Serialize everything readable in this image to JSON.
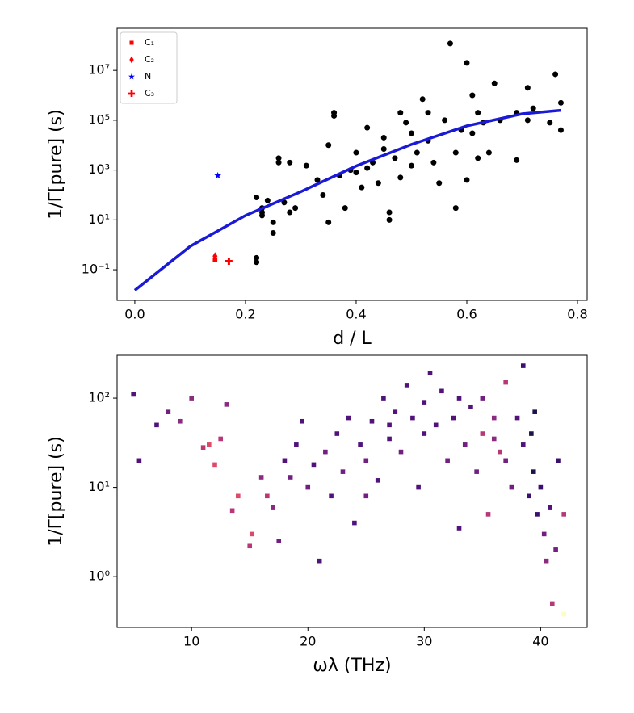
{
  "chart_data": [
    {
      "type": "scatter",
      "xlabel": "d / L",
      "ylabel": "1/Γ[pure] (s)",
      "log_y": true,
      "legend": "upper left",
      "xlim": [
        -0.032,
        0.8175
      ],
      "ylim": [
        0.0059,
        490000000
      ],
      "xticks": [
        {
          "value": 0,
          "label": "0.0"
        },
        {
          "value": 0.2,
          "label": "0.2"
        },
        {
          "value": 0.4,
          "label": "0.4"
        },
        {
          "value": 0.6,
          "label": "0.6"
        },
        {
          "value": 0.8,
          "label": "0.8"
        }
      ],
      "yticks": [
        {
          "value": 0.1,
          "label": "10⁻¹"
        },
        {
          "value": 10,
          "label": "10¹"
        },
        {
          "value": 1000,
          "label": "10³"
        },
        {
          "value": 100000,
          "label": "10⁵"
        },
        {
          "value": 10000000,
          "label": "10⁷"
        }
      ],
      "series": [
        {
          "marker": "circle",
          "color": "#000000",
          "x": [
            0.22,
            0.22,
            0.22,
            0.23,
            0.23,
            0.23,
            0.24,
            0.25,
            0.25,
            0.26,
            0.26,
            0.27,
            0.28,
            0.28,
            0.29,
            0.31,
            0.33,
            0.34,
            0.35,
            0.35,
            0.36,
            0.36,
            0.37,
            0.38,
            0.39,
            0.4,
            0.41,
            0.42,
            0.43,
            0.44,
            0.45,
            0.46,
            0.46,
            0.47,
            0.48,
            0.49,
            0.5,
            0.5,
            0.51,
            0.52,
            0.53,
            0.54,
            0.55,
            0.56,
            0.57,
            0.58,
            0.59,
            0.6,
            0.6,
            0.61,
            0.61,
            0.62,
            0.62,
            0.63,
            0.64,
            0.65,
            0.66,
            0.69,
            0.69,
            0.71,
            0.71,
            0.72,
            0.75,
            0.76,
            0.77,
            0.77,
            0.45,
            0.53,
            0.4,
            0.58,
            0.48,
            0.42
          ],
          "values": [
            80,
            0.3,
            0.2,
            30,
            20,
            15,
            60,
            8,
            3,
            2000,
            3000,
            50,
            20,
            2000,
            30,
            1500,
            400,
            100,
            10000,
            8,
            200000,
            150000,
            600,
            30,
            1000,
            5000,
            200,
            50000,
            2000,
            300,
            20000,
            20,
            10,
            3000,
            500,
            80000,
            1500,
            30000,
            5000,
            700000,
            200000,
            2000,
            300,
            100000,
            120000000,
            5000,
            40000,
            20000000,
            400,
            1000000,
            30000,
            200000,
            3000,
            80000,
            5000,
            3000000,
            100000,
            200000,
            2500,
            2000000,
            100000,
            300000,
            80000,
            7000000,
            500000,
            40000,
            7000,
            15000,
            800,
            30,
            200000,
            1200
          ]
        },
        {
          "marker": "line",
          "color": "#1a1ad6",
          "x": [
            0,
            0.1,
            0.2,
            0.3,
            0.4,
            0.5,
            0.6,
            0.7,
            0.77
          ],
          "values": [
            0.015,
            0.87,
            15,
            135,
            1450,
            10700,
            59000,
            180000,
            250000
          ]
        },
        {
          "name": "C₁",
          "marker": "square",
          "color": "#ff0000",
          "x": [
            0.145
          ],
          "values": [
            0.25
          ]
        },
        {
          "name": "C₂",
          "marker": "diamond",
          "color": "#ff0000",
          "x": [
            0.145
          ],
          "values": [
            0.35
          ]
        },
        {
          "name": "N",
          "marker": "star",
          "color": "#0000ff",
          "x": [
            0.15
          ],
          "values": [
            600
          ]
        },
        {
          "name": "C₃",
          "marker": "plus",
          "color": "#ff0000",
          "x": [
            0.17
          ],
          "values": [
            0.22
          ]
        }
      ]
    },
    {
      "type": "scatter",
      "xlabel": "ωλ (THz)",
      "ylabel": "1/Γ[pure] (s)",
      "log_y": true,
      "xlim": [
        3.6,
        44
      ],
      "ylim": [
        0.27,
        302
      ],
      "xticks": [
        10,
        20,
        30,
        40
      ],
      "yticks": [
        {
          "value": 1,
          "label": "10⁰"
        },
        {
          "value": 10,
          "label": "10¹"
        },
        {
          "value": 100,
          "label": "10²"
        }
      ],
      "series": [
        {
          "marker": "square",
          "x": [
            5,
            5.5,
            7,
            8,
            9,
            10,
            11,
            11.5,
            12,
            12.5,
            13,
            13.5,
            14,
            15,
            15.2,
            16,
            16.5,
            17,
            17.5,
            18,
            18.5,
            19,
            19.5,
            20,
            20.5,
            21,
            21.5,
            22,
            22.5,
            23,
            23.5,
            24,
            24.5,
            25,
            25.5,
            26,
            26.5,
            27,
            27.5,
            28,
            28.5,
            29,
            29.5,
            30,
            30.5,
            31,
            31.5,
            32,
            32.5,
            33,
            33.5,
            34,
            34.5,
            35,
            35.5,
            36,
            36.5,
            37,
            37.5,
            38,
            38.5,
            38.5,
            39,
            39.2,
            39.4,
            39.5,
            39.7,
            40,
            40.3,
            40.5,
            40.8,
            41,
            41.3,
            41.5,
            42,
            42,
            36,
            37,
            30,
            27,
            25,
            33,
            35
          ],
          "values": [
            110,
            20,
            50,
            70,
            55,
            100,
            28,
            30,
            18,
            35,
            85,
            5.5,
            8,
            2.2,
            3,
            13,
            8,
            6,
            2.5,
            20,
            13,
            30,
            55,
            10,
            18,
            1.5,
            25,
            8,
            40,
            15,
            60,
            4,
            30,
            20,
            55,
            12,
            100,
            35,
            70,
            25,
            140,
            60,
            10,
            90,
            190,
            50,
            120,
            20,
            60,
            3.5,
            30,
            80,
            15,
            40,
            5,
            60,
            25,
            150,
            10,
            60,
            230,
            30,
            8,
            40,
            15,
            70,
            5,
            10,
            3,
            1.5,
            6,
            0.5,
            2,
            20,
            0.38,
            5,
            35,
            20,
            40,
            50,
            8,
            100,
            100
          ],
          "colors": [
            "#51127c",
            "#51127c",
            "#51127c",
            "#721f81",
            "#8c2981",
            "#8c2981",
            "#b73779",
            "#de4968",
            "#de4968",
            "#b73779",
            "#8c2981",
            "#b73779",
            "#de4968",
            "#b73779",
            "#de4968",
            "#8c2981",
            "#b73779",
            "#8c2981",
            "#721f81",
            "#51127c",
            "#721f81",
            "#51127c",
            "#51127c",
            "#721f81",
            "#51127c",
            "#51127c",
            "#721f81",
            "#51127c",
            "#51127c",
            "#721f81",
            "#51127c",
            "#51127c",
            "#51127c",
            "#721f81",
            "#51127c",
            "#51127c",
            "#51127c",
            "#51127c",
            "#51127c",
            "#721f81",
            "#51127c",
            "#51127c",
            "#51127c",
            "#51127c",
            "#51127c",
            "#51127c",
            "#51127c",
            "#721f81",
            "#51127c",
            "#51127c",
            "#721f81",
            "#51127c",
            "#721f81",
            "#b73779",
            "#b73779",
            "#8c2981",
            "#b73779",
            "#b73779",
            "#721f81",
            "#51127c",
            "#3b0f70",
            "#51127c",
            "#3b0f70",
            "#1d1147",
            "#1d1147",
            "#1d1147",
            "#3b0f70",
            "#3b0f70",
            "#721f81",
            "#8c2981",
            "#51127c",
            "#b73779",
            "#721f81",
            "#3b0f70",
            "#fcfdbf",
            "#b73779",
            "#8c2981",
            "#721f81",
            "#51127c",
            "#51127c",
            "#721f81",
            "#51127c",
            "#721f81"
          ]
        }
      ]
    }
  ]
}
